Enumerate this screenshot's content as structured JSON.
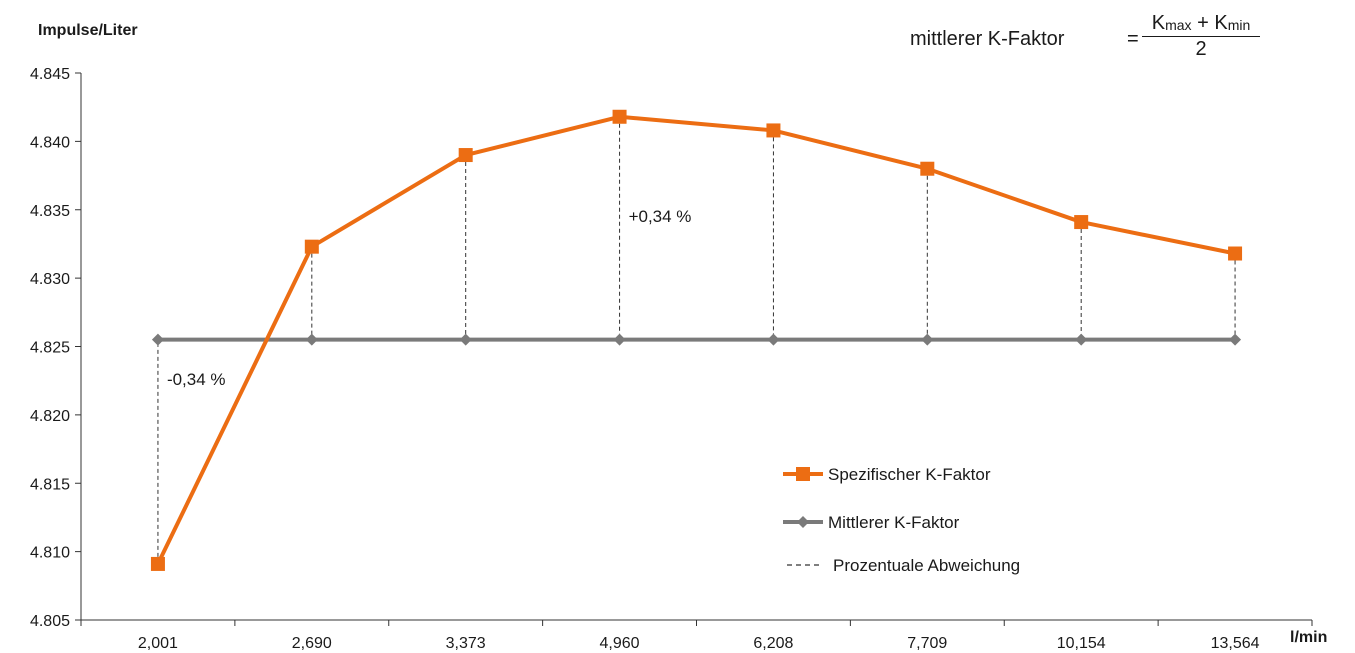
{
  "y_axis_label": "Impulse/Liter",
  "x_axis_label": "l/min",
  "formula": {
    "lhs": "mittlerer K-Faktor",
    "equals": "=",
    "numerator_k1": "K",
    "numerator_sub1": "max",
    "numerator_plus": "+",
    "numerator_k2": "K",
    "numerator_sub2": "min",
    "denominator": "2"
  },
  "colors": {
    "specific": "#ec6d13",
    "mean": "#7a7a7a",
    "deviation": "#333333",
    "axis": "#333333"
  },
  "chart_data": {
    "type": "line",
    "categories": [
      "2,001",
      "2,690",
      "3,373",
      "4,960",
      "6,208",
      "7,709",
      "10,154",
      "13,564"
    ],
    "xlabel": "l/min",
    "ylabel": "Impulse/Liter",
    "ylim": [
      4.805,
      4.845
    ],
    "yticks": [
      {
        "value": 4.805,
        "label": "4.805"
      },
      {
        "value": 4.81,
        "label": "4.810"
      },
      {
        "value": 4.815,
        "label": "4.815"
      },
      {
        "value": 4.82,
        "label": "4.820"
      },
      {
        "value": 4.825,
        "label": "4.825"
      },
      {
        "value": 4.83,
        "label": "4.830"
      },
      {
        "value": 4.835,
        "label": "4.835"
      },
      {
        "value": 4.84,
        "label": "4.840"
      },
      {
        "value": 4.845,
        "label": "4.845"
      }
    ],
    "grid": false,
    "series": [
      {
        "name": "Spezifischer K-Faktor",
        "marker": "square",
        "values": [
          4.8091,
          4.8323,
          4.839,
          4.8418,
          4.8408,
          4.838,
          4.8341,
          4.8318
        ]
      },
      {
        "name": "Mittlerer K-Faktor",
        "marker": "diamond",
        "values": [
          4.8255,
          4.8255,
          4.8255,
          4.8255,
          4.8255,
          4.8255,
          4.8255,
          4.8255
        ]
      }
    ],
    "deviation_legend": "Prozentuale Abweichung",
    "annotations": [
      {
        "text": "-0,34 %",
        "category": "2,001",
        "y": 4.8222
      },
      {
        "text": "+0,34 %",
        "category": "4,960",
        "y": 4.8341
      }
    ],
    "legend_position": "bottom-right"
  }
}
